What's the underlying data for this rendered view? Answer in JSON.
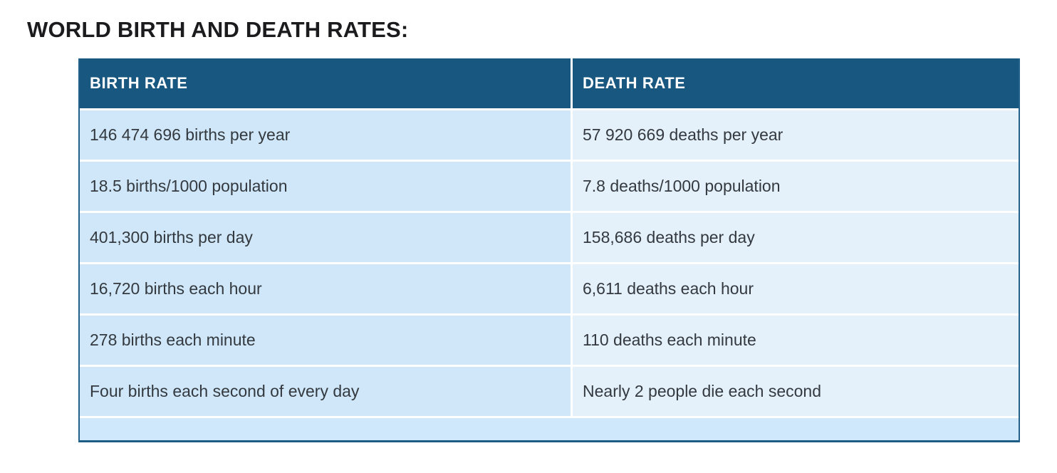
{
  "page": {
    "title": "WORLD BIRTH AND DEATH RATES:"
  },
  "table": {
    "columns": [
      "BIRTH RATE",
      "DEATH RATE"
    ],
    "rows": [
      [
        "146 474 696 births per year",
        "57 920 669 deaths per year"
      ],
      [
        "18.5 births/1000 population",
        "7.8 deaths/1000 population"
      ],
      [
        "401,300 births per day",
        "158,686 deaths per day"
      ],
      [
        "16,720 births each hour",
        "6,611 deaths each hour"
      ],
      [
        "278 births each minute",
        "110 deaths each minute"
      ],
      [
        "Four births each second of every day",
        "Nearly 2 people die each second"
      ]
    ]
  },
  "chart_data": {
    "type": "table",
    "title": "WORLD BIRTH AND DEATH RATES:",
    "columns": [
      "BIRTH RATE",
      "DEATH RATE"
    ],
    "rows": [
      [
        "146 474 696 births per year",
        "57 920 669 deaths per year"
      ],
      [
        "18.5 births/1000 population",
        "7.8 deaths/1000 population"
      ],
      [
        "401,300 births per day",
        "158,686 deaths per day"
      ],
      [
        "16,720 births each hour",
        "6,611 deaths each hour"
      ],
      [
        "278 births each minute",
        "110 deaths each minute"
      ],
      [
        "Four births each second of every day",
        "Nearly 2 people die each second"
      ]
    ],
    "notes": {
      "births_per_year": 146474696,
      "deaths_per_year": 57920669,
      "births_per_1000_population": 18.5,
      "deaths_per_1000_population": 7.8,
      "births_per_day": 401300,
      "deaths_per_day": 158686,
      "births_each_hour": 16720,
      "deaths_each_hour": 6611,
      "births_each_minute": 278,
      "deaths_each_minute": 110
    }
  },
  "colors": {
    "header_bg": "#18577f",
    "birth_column_bg": "#cfe7f8",
    "death_column_bg": "#e4f1fb",
    "footer_bg": "#d0e8fb",
    "border": "#1d5c85",
    "header_text": "#ffffff",
    "cell_text": "#33393f",
    "title_text": "#1b1b1d"
  }
}
